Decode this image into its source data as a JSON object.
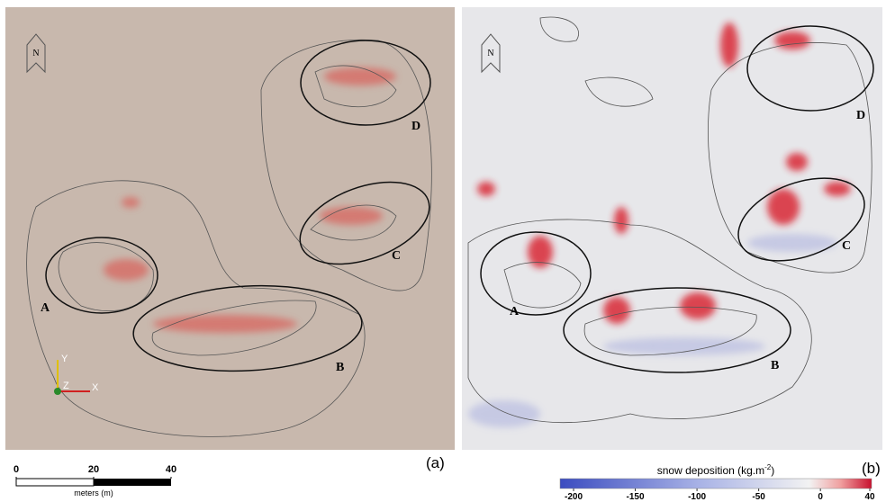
{
  "panels": [
    {
      "label": "(a)",
      "north": "N",
      "regions": [
        "A",
        "B",
        "C",
        "D"
      ],
      "triad": [
        "Y",
        "Z",
        "X"
      ]
    },
    {
      "label": "(b)",
      "north": "N",
      "regions": [
        "A",
        "B",
        "C",
        "D"
      ]
    }
  ],
  "scale_bar": {
    "ticks": [
      0,
      20,
      40
    ],
    "lim": [
      0,
      40
    ],
    "unit": "meters (m)"
  },
  "colorbar": {
    "title": "snow deposition (kg.m",
    "title_sup": "-2",
    "title_end": ")",
    "lim": [
      -200,
      40
    ],
    "ticks": [
      -200,
      -150,
      -100,
      -50,
      0,
      40
    ]
  }
}
